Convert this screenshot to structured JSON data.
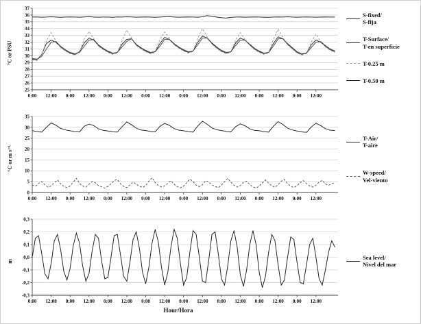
{
  "figure": {
    "xlabel": "Hour/Hora"
  },
  "chart_data": [
    {
      "type": "line",
      "panel": "temperature-salinity",
      "ylabel": "°C or PSU",
      "ylim": [
        25,
        37
      ],
      "yticks": [
        25,
        26,
        27,
        28,
        29,
        30,
        31,
        32,
        33,
        34,
        35,
        36,
        37
      ],
      "ytick_labels": [
        "25",
        "26",
        "27",
        "28",
        "29",
        "30",
        "31",
        "32",
        "33",
        "34",
        "35",
        "36",
        "37"
      ],
      "grid": true,
      "legend_position": "right",
      "xlim_hours": [
        0,
        194
      ],
      "xtick_hours": [
        0,
        12,
        24,
        36,
        48,
        60,
        72,
        84,
        96,
        108,
        120,
        132,
        144,
        156,
        168,
        180
      ],
      "xtick_labels": [
        "0:00",
        "12:00",
        "0:00",
        "12:00",
        "0:00",
        "12:00",
        "0:00",
        "12:00",
        "0:00",
        "12:00",
        "0:00",
        "12:00",
        "0:00",
        "12:00",
        "0:00",
        "12:00"
      ],
      "series": [
        {
          "name": "S-fixed/S-fija",
          "legend_lines": [
            "S-fixed/",
            "S-fija"
          ],
          "style": "solid",
          "color": "#262626",
          "step_hours": 3,
          "values": [
            35.7,
            35.72,
            35.68,
            35.7,
            35.74,
            35.7,
            35.66,
            35.7,
            35.72,
            35.7,
            35.68,
            35.72,
            35.76,
            35.7,
            35.68,
            35.7,
            35.7,
            35.66,
            35.72,
            35.7,
            35.74,
            35.72,
            35.68,
            35.7,
            35.72,
            35.7,
            35.66,
            35.7,
            35.74,
            35.78,
            35.7,
            35.68,
            35.7,
            35.72,
            35.7,
            35.68,
            35.74,
            35.9,
            35.8,
            35.7,
            35.6,
            35.55,
            35.65,
            35.7,
            35.72,
            35.68,
            35.7,
            35.72,
            35.7,
            35.68,
            35.66,
            35.7,
            35.72,
            35.7,
            35.74,
            35.7,
            35.68,
            35.7,
            35.72,
            35.7,
            35.68,
            35.7,
            35.72,
            35.7,
            35.7
          ]
        },
        {
          "name": "T-Surface/T-en superficie",
          "legend_lines": [
            "T-Surface/",
            "T-en superficie"
          ],
          "style": "solid",
          "color": "#333333",
          "step_hours": 3,
          "values": [
            29.5,
            29.4,
            30.2,
            31.8,
            32.3,
            32.0,
            31.3,
            30.8,
            30.4,
            30.2,
            30.6,
            31.9,
            32.6,
            32.3,
            31.5,
            31.0,
            30.6,
            30.3,
            30.5,
            31.7,
            32.4,
            32.5,
            31.6,
            31.1,
            30.7,
            30.4,
            30.6,
            31.8,
            32.7,
            32.4,
            31.7,
            31.2,
            30.8,
            30.5,
            30.7,
            32.0,
            32.9,
            32.6,
            31.8,
            31.2,
            30.7,
            30.4,
            30.6,
            31.9,
            32.6,
            32.3,
            31.6,
            31.0,
            30.6,
            30.3,
            30.5,
            31.8,
            32.8,
            32.5,
            31.7,
            31.1,
            30.5,
            30.2,
            30.4,
            31.6,
            32.3,
            32.0,
            31.4,
            30.9,
            30.6
          ]
        },
        {
          "name": "T-0.25 m",
          "legend_lines": [
            "T-0.25 m"
          ],
          "style": "dashed",
          "color": "#9e9e9e",
          "step_hours": 3,
          "values": [
            29.4,
            29.3,
            30.1,
            32.2,
            33.4,
            32.2,
            31.2,
            30.7,
            30.3,
            30.1,
            30.5,
            32.5,
            33.6,
            32.5,
            31.4,
            30.9,
            30.5,
            30.2,
            30.4,
            32.2,
            33.8,
            32.6,
            31.5,
            31.0,
            30.6,
            30.3,
            30.5,
            32.4,
            33.5,
            32.6,
            31.6,
            31.1,
            30.7,
            30.4,
            30.6,
            32.6,
            34.0,
            32.8,
            31.7,
            31.1,
            30.6,
            30.3,
            30.5,
            32.3,
            33.4,
            32.4,
            31.5,
            30.9,
            30.5,
            30.2,
            30.4,
            32.4,
            33.9,
            32.7,
            31.6,
            31.0,
            30.4,
            30.1,
            30.3,
            32.0,
            33.2,
            32.1,
            31.3,
            30.8,
            30.5
          ]
        },
        {
          "name": "T-0.50 m",
          "legend_lines": [
            "T-0.50 m"
          ],
          "style": "solid",
          "color": "#4d4d4d",
          "step_hours": 3,
          "values": [
            29.6,
            29.5,
            29.9,
            31.0,
            32.0,
            32.1,
            31.4,
            30.9,
            30.5,
            30.3,
            30.5,
            31.4,
            32.3,
            32.4,
            31.6,
            31.1,
            30.7,
            30.4,
            30.5,
            31.3,
            32.1,
            32.5,
            31.7,
            31.2,
            30.8,
            30.5,
            30.6,
            31.4,
            32.4,
            32.4,
            31.8,
            31.3,
            30.9,
            30.6,
            30.7,
            31.6,
            32.6,
            32.6,
            31.9,
            31.3,
            30.8,
            30.5,
            30.6,
            31.5,
            32.3,
            32.3,
            31.7,
            31.1,
            30.7,
            30.4,
            30.5,
            31.4,
            32.5,
            32.5,
            31.8,
            31.2,
            30.6,
            30.3,
            30.4,
            31.2,
            32.0,
            32.1,
            31.5,
            31.0,
            30.7
          ]
        }
      ]
    },
    {
      "type": "line",
      "panel": "air-temperature-wind",
      "ylabel": "°C or m s⁻¹",
      "ylim": [
        0,
        35
      ],
      "yticks": [
        0,
        5,
        10,
        15,
        20,
        25,
        30,
        35
      ],
      "ytick_labels": [
        "0",
        "5",
        "10",
        "15",
        "20",
        "25",
        "30",
        "35"
      ],
      "grid": true,
      "legend_position": "right",
      "xlim_hours": [
        0,
        194
      ],
      "xtick_hours": [
        0,
        12,
        24,
        36,
        48,
        60,
        72,
        84,
        96,
        108,
        120,
        132,
        144,
        156,
        168,
        180
      ],
      "xtick_labels": [
        "0:00",
        "12:00",
        "0:00",
        "12:00",
        "0:00",
        "12:00",
        "0:00",
        "12:00",
        "0:00",
        "12:00",
        "0:00",
        "12:00",
        "0:00",
        "12:00",
        "0:00",
        "12:00"
      ],
      "series": [
        {
          "name": "T-Air/T-aire",
          "legend_lines": [
            "T-Air/",
            "T-aire"
          ],
          "style": "solid",
          "color": "#2b2b2b",
          "step_hours": 3,
          "values": [
            28.5,
            28.0,
            27.8,
            30.0,
            32.0,
            31.0,
            29.5,
            28.8,
            28.4,
            28.0,
            27.9,
            30.5,
            31.5,
            30.8,
            29.3,
            28.6,
            28.3,
            27.9,
            27.8,
            30.2,
            32.5,
            31.2,
            29.6,
            28.8,
            28.5,
            28.1,
            27.9,
            30.4,
            31.8,
            30.9,
            29.4,
            28.7,
            28.4,
            28.0,
            27.8,
            30.6,
            32.8,
            31.4,
            29.7,
            28.9,
            28.5,
            28.1,
            27.9,
            30.3,
            31.6,
            30.7,
            29.3,
            28.6,
            28.4,
            28.0,
            27.8,
            30.5,
            32.6,
            31.3,
            29.6,
            28.8,
            28.3,
            27.9,
            27.7,
            30.1,
            31.9,
            30.8,
            29.4,
            28.7,
            28.5
          ]
        },
        {
          "name": "W-speed/Vel-viento",
          "legend_lines": [
            "W-speed/",
            "Vel-viento"
          ],
          "style": "dashed",
          "color": "#5a5a5a",
          "step_hours": 2,
          "values": [
            3.5,
            2.8,
            4.2,
            5.0,
            3.6,
            2.5,
            3.0,
            4.5,
            5.8,
            4.0,
            2.8,
            2.2,
            3.0,
            4.8,
            6.5,
            4.2,
            3.0,
            2.5,
            3.8,
            5.0,
            4.5,
            3.2,
            2.6,
            2.0,
            2.8,
            4.0,
            5.5,
            6.0,
            4.0,
            2.8,
            2.2,
            3.5,
            4.8,
            3.8,
            2.9,
            2.3,
            3.2,
            5.2,
            6.8,
            4.5,
            3.2,
            2.6,
            3.0,
            4.2,
            5.5,
            3.8,
            2.7,
            2.1,
            2.9,
            4.5,
            6.2,
            5.0,
            3.4,
            2.7,
            3.6,
            5.5,
            4.8,
            3.5,
            2.8,
            2.2,
            3.4,
            5.0,
            6.5,
            4.8,
            3.3,
            2.5,
            3.2,
            4.6,
            5.2,
            3.6,
            2.6,
            2.0,
            3.0,
            4.4,
            5.8,
            4.3,
            3.1,
            2.4,
            3.5,
            5.2,
            6.0,
            4.0,
            2.9,
            2.3,
            3.1,
            4.6,
            5.5,
            4.1,
            3.0,
            2.5,
            3.3,
            4.8,
            5.6,
            3.9,
            3.3,
            4.0,
            4.5
          ]
        }
      ]
    },
    {
      "type": "line",
      "panel": "sea-level",
      "ylabel": "m",
      "ylim": [
        -0.3,
        0.3
      ],
      "yticks": [
        -0.3,
        -0.2,
        -0.1,
        0,
        0.1,
        0.2,
        0.3
      ],
      "ytick_labels": [
        "-0,3",
        "-0,2",
        "-0,1",
        "0,0",
        "0,1",
        "0,2",
        "0,3"
      ],
      "grid": true,
      "legend_position": "right",
      "xlim_hours": [
        0,
        194
      ],
      "xtick_hours": [
        0,
        12,
        24,
        36,
        48,
        60,
        72,
        84,
        96,
        108,
        120,
        132,
        144,
        156,
        168,
        180
      ],
      "xtick_labels": [
        "0:00",
        "12:00",
        "0:00",
        "12:00",
        "0:00",
        "12:00",
        "0:00",
        "12:00",
        "0:00",
        "12:00",
        "0:00",
        "12:00",
        "0:00",
        "12:00",
        "0:00",
        "12:00"
      ],
      "series": [
        {
          "name": "Sea level/Nivel del mar",
          "legend_lines": [
            "Sea level/",
            "Nivel del mar"
          ],
          "style": "solid",
          "color": "#262626",
          "step_hours": 2,
          "values": [
            0.0,
            0.15,
            0.17,
            0.03,
            -0.13,
            -0.17,
            -0.05,
            0.13,
            0.18,
            0.06,
            -0.11,
            -0.18,
            -0.09,
            0.09,
            0.19,
            0.11,
            -0.07,
            -0.19,
            -0.13,
            0.05,
            0.18,
            0.15,
            -0.03,
            -0.17,
            -0.16,
            0.0,
            0.17,
            0.18,
            0.02,
            -0.15,
            -0.19,
            -0.04,
            0.14,
            0.2,
            0.07,
            -0.12,
            -0.21,
            -0.08,
            0.11,
            0.22,
            0.12,
            -0.08,
            -0.22,
            -0.12,
            0.08,
            0.22,
            0.15,
            -0.05,
            -0.22,
            -0.16,
            0.04,
            0.21,
            0.18,
            0.0,
            -0.19,
            -0.2,
            -0.02,
            0.18,
            0.2,
            0.03,
            -0.17,
            -0.22,
            -0.07,
            0.13,
            0.21,
            0.08,
            -0.14,
            -0.23,
            -0.1,
            0.1,
            0.21,
            0.1,
            -0.12,
            -0.24,
            -0.15,
            0.04,
            0.18,
            0.13,
            -0.06,
            -0.22,
            -0.18,
            0.0,
            0.16,
            0.14,
            -0.04,
            -0.2,
            -0.21,
            -0.06,
            0.1,
            0.15,
            0.0,
            -0.17,
            -0.22,
            -0.1,
            0.04,
            0.13,
            0.08
          ]
        }
      ]
    }
  ]
}
